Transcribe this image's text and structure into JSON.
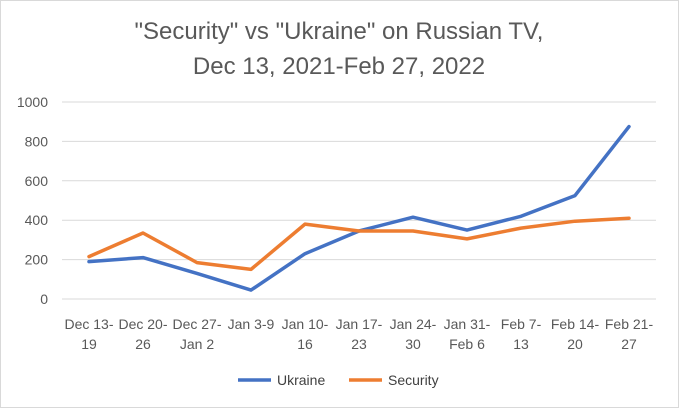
{
  "chart_data": {
    "type": "line",
    "title": [
      "\"Security\" vs \"Ukraine\" on Russian TV,",
      "Dec 13, 2021-Feb 27, 2022"
    ],
    "categories": [
      [
        "Dec 13-",
        "19"
      ],
      [
        "Dec 20-",
        "26"
      ],
      [
        "Dec 27-",
        "Jan 2"
      ],
      [
        "Jan 3-9",
        ""
      ],
      [
        "Jan 10-",
        "16"
      ],
      [
        "Jan 17-",
        "23"
      ],
      [
        "Jan 24-",
        "30"
      ],
      [
        "Jan 31-",
        "Feb 6"
      ],
      [
        "Feb 7-",
        "13"
      ],
      [
        "Feb 14-",
        "20"
      ],
      [
        "Feb 21-",
        "27"
      ]
    ],
    "yticks": [
      "0",
      "200",
      "400",
      "600",
      "800",
      "1000"
    ],
    "ylim": [
      0,
      1000
    ],
    "grid": true,
    "legend_position": "bottom",
    "series": [
      {
        "name": "Ukraine",
        "color": "#4472c4",
        "values": [
          190,
          210,
          130,
          45,
          230,
          345,
          415,
          350,
          420,
          525,
          875
        ]
      },
      {
        "name": "Security",
        "color": "#ed7d31",
        "values": [
          215,
          335,
          185,
          150,
          380,
          345,
          345,
          305,
          360,
          395,
          410
        ]
      }
    ],
    "xlabel": "",
    "ylabel": ""
  }
}
